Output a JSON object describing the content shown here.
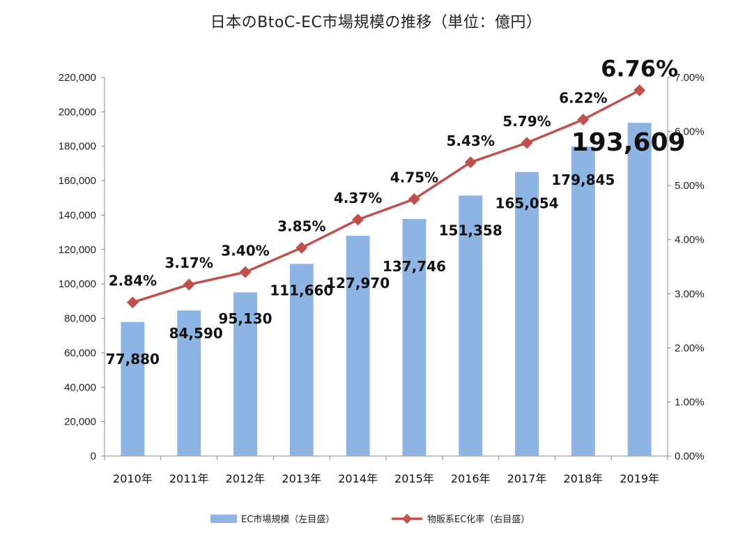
{
  "chart_data": {
    "type": "bar",
    "title": "日本のBtoC-EC市場規模の推移（単位：億円）",
    "categories": [
      "2010年",
      "2011年",
      "2012年",
      "2013年",
      "2014年",
      "2015年",
      "2016年",
      "2017年",
      "2018年",
      "2019年"
    ],
    "series": [
      {
        "name": "EC市場規模（左目盛）",
        "type": "bar",
        "axis": "left",
        "values": [
          77880,
          84590,
          95130,
          111660,
          127970,
          137746,
          151358,
          165054,
          179845,
          193609
        ],
        "labels": [
          "77,880",
          "84,590",
          "95,130",
          "111,660",
          "127,970",
          "137,746",
          "151,358",
          "165,054",
          "179,845",
          "193,609"
        ],
        "color": "#8eb4e3"
      },
      {
        "name": "物販系EC化率（右目盛）",
        "type": "line",
        "axis": "right",
        "values": [
          2.84,
          3.17,
          3.4,
          3.85,
          4.37,
          4.75,
          5.43,
          5.79,
          6.22,
          6.76
        ],
        "labels": [
          "2.84%",
          "3.17%",
          "3.40%",
          "3.85%",
          "4.37%",
          "4.75%",
          "5.43%",
          "5.79%",
          "6.22%",
          "6.76%"
        ],
        "color": "#c0504d"
      }
    ],
    "y_left": {
      "lim": [
        0,
        220000
      ],
      "ticks": [
        "0",
        "20,000",
        "40,000",
        "60,000",
        "80,000",
        "100,000",
        "120,000",
        "140,000",
        "160,000",
        "180,000",
        "200,000",
        "220,000"
      ]
    },
    "y_right": {
      "lim": [
        0,
        7
      ],
      "ticks": [
        "0.00%",
        "1.00%",
        "2.00%",
        "3.00%",
        "4.00%",
        "5.00%",
        "6.00%",
        "7.00%"
      ]
    },
    "highlight": {
      "bar_label_color": "#1f3a7a",
      "line_label_color": "#c00000"
    },
    "grid": false,
    "legend_position": "bottom"
  }
}
